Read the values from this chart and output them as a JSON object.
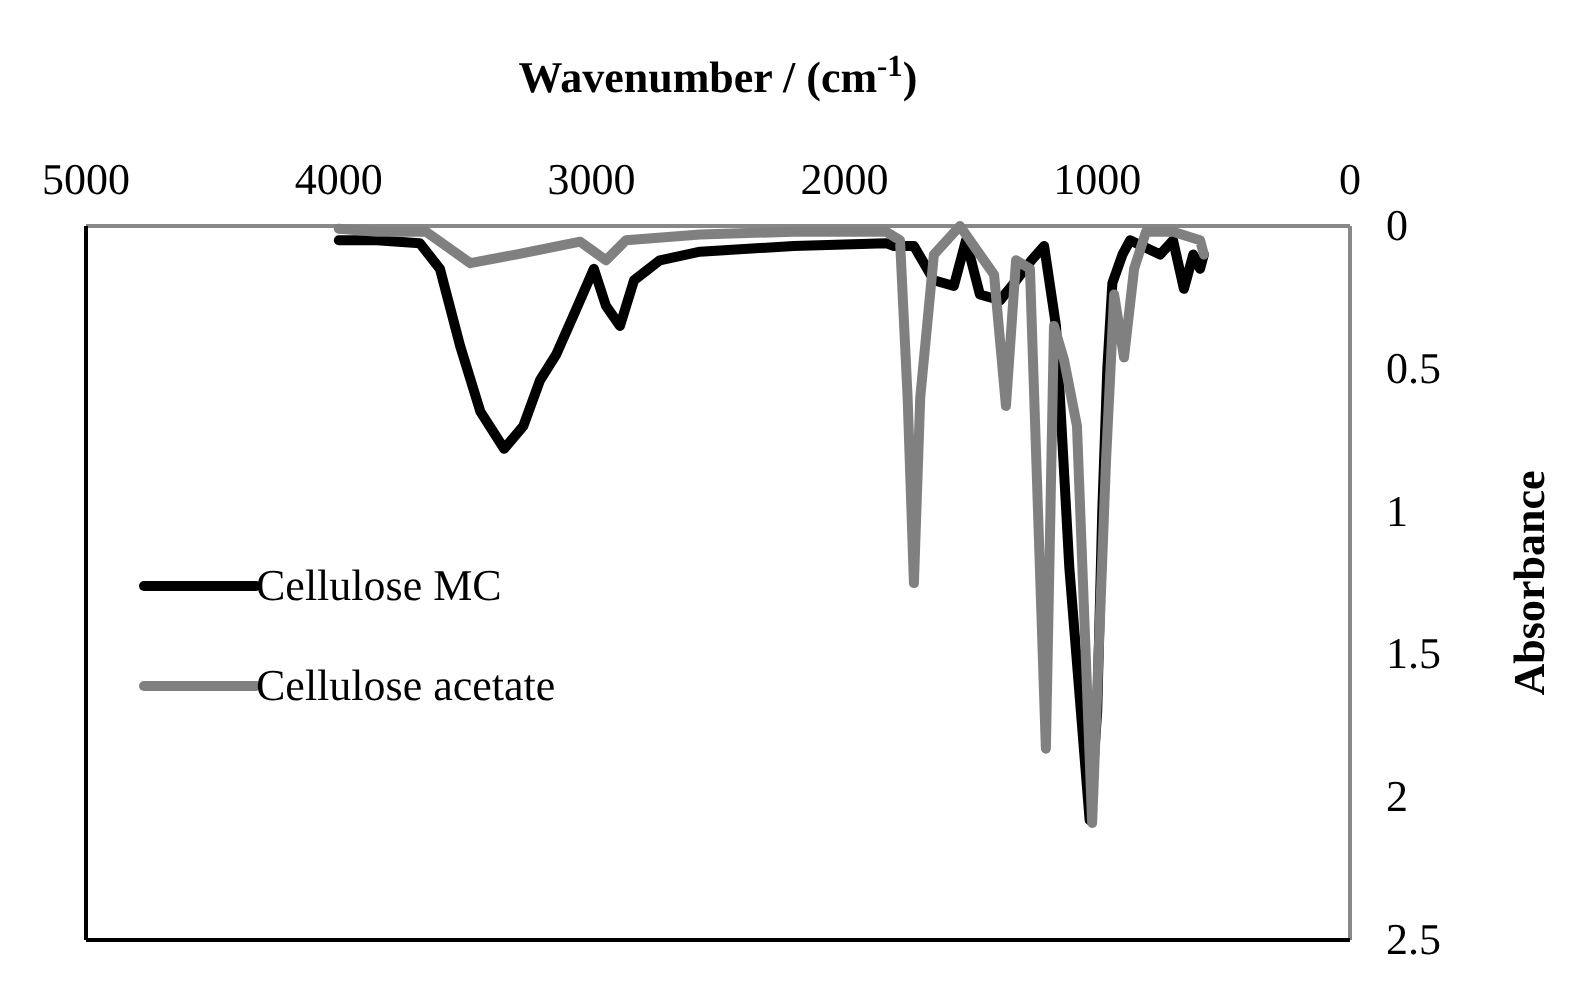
{
  "chart_data": {
    "type": "line",
    "xlabel": "Wavenumber / (cm$^{-1}$)",
    "ylabel": "Absorbance",
    "xlim": [
      5000,
      0
    ],
    "xticks": [
      5000,
      4000,
      3000,
      2000,
      1000,
      0
    ],
    "ylim": [
      2.5,
      0
    ],
    "yticks": [
      0,
      0.5,
      1,
      1.5,
      2,
      2.5
    ],
    "grid": false,
    "legend": "left",
    "marker": "none",
    "line_style": "solid",
    "series": [
      {
        "name": "Cellulose MC",
        "color": "#000000",
        "x": [
          4000,
          3850,
          3680,
          3600,
          3520,
          3440,
          3346,
          3270,
          3204,
          3140,
          3070,
          2991,
          2943,
          2888,
          2832,
          2730,
          2571,
          2200,
          1835,
          1804,
          1725,
          1646,
          1567,
          1519,
          1464,
          1384,
          1329,
          1260,
          1210,
          1163,
          1110,
          1060,
          1030,
          1000,
          980,
          960,
          940,
          900,
          870,
          751,
          700,
          657,
          620,
          593,
          578
        ],
        "values": [
          0.05,
          0.05,
          0.06,
          0.15,
          0.42,
          0.65,
          0.78,
          0.7,
          0.54,
          0.45,
          0.31,
          0.15,
          0.28,
          0.35,
          0.19,
          0.12,
          0.09,
          0.07,
          0.06,
          0.07,
          0.07,
          0.19,
          0.21,
          0.05,
          0.24,
          0.26,
          0.2,
          0.12,
          0.07,
          0.35,
          1.2,
          1.75,
          2.08,
          1.7,
          1.0,
          0.5,
          0.2,
          0.1,
          0.05,
          0.1,
          0.05,
          0.22,
          0.1,
          0.15,
          0.1
        ]
      },
      {
        "name": "Cellulose acetate",
        "color": "#808080",
        "x": [
          4000,
          3850,
          3655,
          3480,
          3300,
          3045,
          2943,
          2864,
          2571,
          2200,
          1835,
          1780,
          1750,
          1725,
          1700,
          1646,
          1543,
          1464,
          1408,
          1361,
          1321,
          1266,
          1203,
          1171,
          1131,
          1080,
          1020,
          965,
          933,
          894,
          854,
          807,
          700,
          593,
          578
        ],
        "values": [
          0.01,
          0.02,
          0.02,
          0.13,
          0.1,
          0.055,
          0.12,
          0.05,
          0.03,
          0.02,
          0.02,
          0.05,
          0.6,
          1.25,
          0.6,
          0.1,
          0.0,
          0.1,
          0.17,
          0.63,
          0.12,
          0.15,
          1.83,
          0.35,
          0.47,
          0.7,
          2.09,
          0.82,
          0.24,
          0.46,
          0.15,
          0.02,
          0.02,
          0.05,
          0.1
        ]
      }
    ]
  }
}
